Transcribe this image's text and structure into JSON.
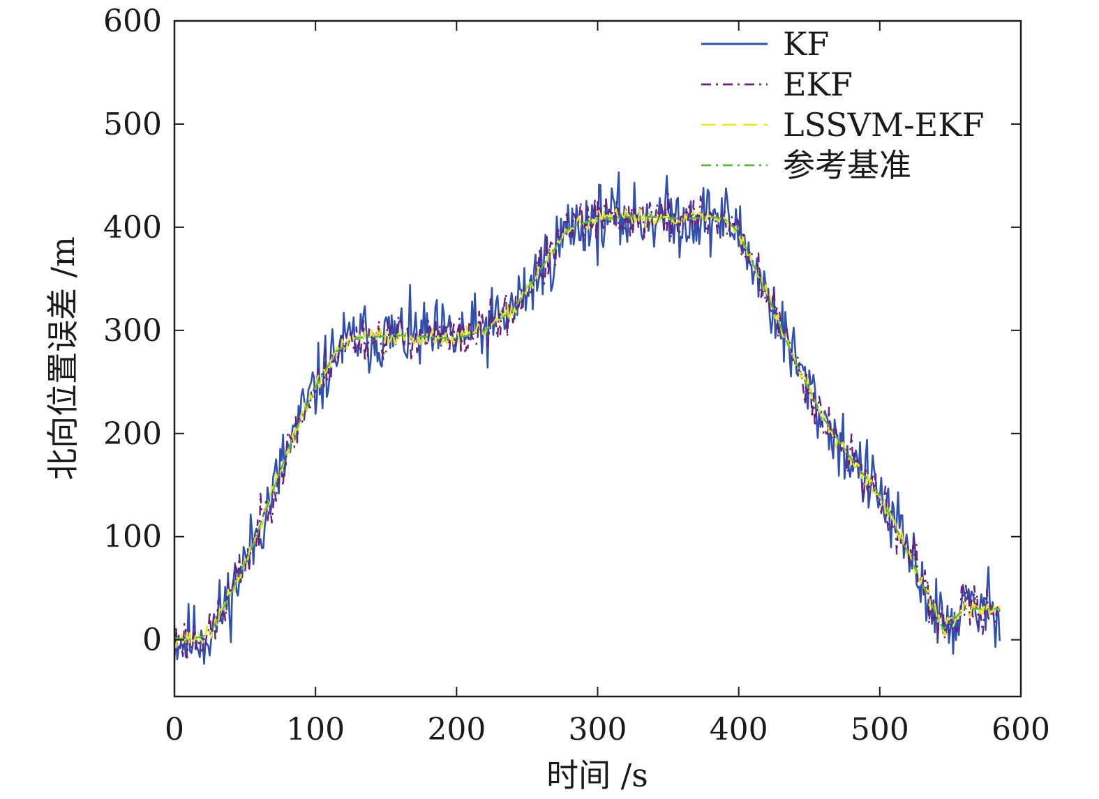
{
  "chart_data": {
    "type": "line",
    "xlabel": "时间 /s",
    "ylabel": "北向位置误差 /m",
    "xlim": [
      0,
      600
    ],
    "ylim": [
      -55,
      600
    ],
    "xticks": [
      0,
      100,
      200,
      300,
      400,
      500,
      600
    ],
    "yticks": [
      0,
      100,
      200,
      300,
      400,
      500,
      600
    ],
    "xtick_labels": [
      "0",
      "100",
      "200",
      "300",
      "400",
      "500",
      "600"
    ],
    "ytick_labels": [
      "0",
      "100",
      "200",
      "300",
      "400",
      "500",
      "600"
    ],
    "grid": false,
    "legend_position": "top-right",
    "series": [
      {
        "name": "KF",
        "color": "#3050b0",
        "style": "solid",
        "noise": 26,
        "seed": 11
      },
      {
        "name": "EKF",
        "color": "#6a1f7a",
        "style": "dashdot",
        "noise": 16,
        "seed": 23
      },
      {
        "name": "LSSVM-EKF",
        "color": "#e6e62e",
        "style": "dashed",
        "noise": 6,
        "seed": 37
      },
      {
        "name": "参考基准",
        "color": "#5cb83c",
        "style": "dashdot",
        "noise": 0,
        "seed": 0
      }
    ],
    "reference": {
      "x": [
        0,
        10,
        25,
        40,
        55,
        70,
        85,
        100,
        115,
        130,
        160,
        200,
        220,
        240,
        260,
        280,
        300,
        320,
        340,
        360,
        380,
        390,
        400,
        420,
        440,
        460,
        480,
        500,
        520,
        540,
        545,
        560,
        585
      ],
      "y": [
        2,
        0,
        5,
        45,
        90,
        145,
        200,
        245,
        280,
        293,
        295,
        292,
        300,
        320,
        360,
        400,
        408,
        410,
        410,
        408,
        410,
        408,
        395,
        335,
        270,
        215,
        175,
        140,
        85,
        25,
        10,
        30,
        30
      ]
    },
    "x_end": 585
  }
}
